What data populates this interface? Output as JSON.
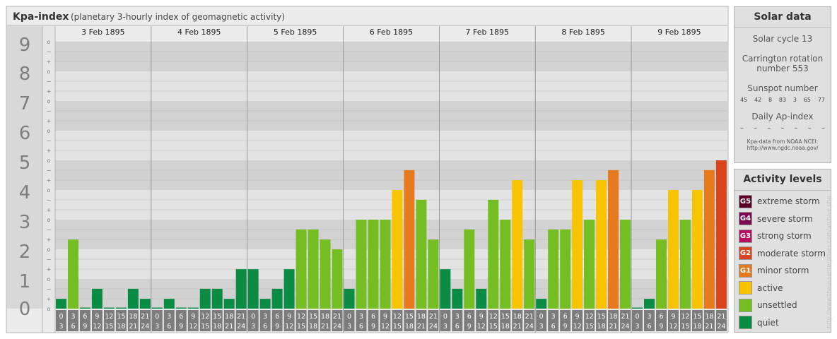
{
  "header": {
    "title": "Kpa-index",
    "subtitle": "(planetary 3-hourly index of geomagnetic activity)"
  },
  "chart_data": {
    "type": "bar",
    "title": "Kpa-index",
    "subtitle": "(planetary 3-hourly index of geomagnetic activity)",
    "ylim": [
      0,
      9
    ],
    "y_ticks": [
      "0",
      "1",
      "2",
      "3",
      "4",
      "5",
      "6",
      "7",
      "8",
      "9"
    ],
    "sub_ticks": [
      "+",
      "o",
      "−"
    ],
    "days": [
      "3 Feb 1895",
      "4 Feb 1895",
      "5 Feb 1895",
      "6 Feb 1895",
      "7 Feb 1895",
      "8 Feb 1895",
      "9 Feb 1895"
    ],
    "interval_start": [
      "0",
      "3",
      "6",
      "9",
      "12",
      "15",
      "18",
      "21"
    ],
    "interval_end": [
      "3",
      "6",
      "9",
      "12",
      "15",
      "18",
      "21",
      "24"
    ],
    "values": [
      [
        0.33,
        2.33,
        0,
        0.67,
        0,
        0,
        0.67,
        0.33
      ],
      [
        0,
        0.33,
        0,
        0,
        0.67,
        0.67,
        0.33,
        1.33
      ],
      [
        1.33,
        0.33,
        0.67,
        1.33,
        2.67,
        2.67,
        2.33,
        2
      ],
      [
        0.67,
        3,
        3,
        3,
        4,
        4.67,
        3.67,
        2.33
      ],
      [
        1.33,
        0.67,
        2.67,
        0.67,
        3.67,
        3,
        4.33,
        2.33
      ],
      [
        0.33,
        2.67,
        2.67,
        4.33,
        3,
        4.33,
        4.67,
        3
      ],
      [
        0,
        0.33,
        2.33,
        4,
        3,
        4,
        4.67,
        5
      ]
    ],
    "grid": true,
    "legend": "right"
  },
  "solar": {
    "title": "Solar data",
    "cycle": "Solar cycle 13",
    "carrington_line1": "Carrington rotation",
    "carrington_line2": "number 553",
    "sunspot_label": "Sunspot number",
    "sunspots": [
      "45",
      "42",
      "8",
      "83",
      "3",
      "65",
      "77"
    ],
    "ap_label": "Daily Ap-index",
    "ap": [
      "–",
      "–",
      "–",
      "–",
      "–",
      "–",
      "–"
    ],
    "note_line1": "Kpa-data from NOAA NCEI:",
    "note_line2": "http://www.ngdc.noaa.gov/"
  },
  "activity": {
    "title": "Activity levels",
    "levels": [
      {
        "code": "G5",
        "label": "extreme storm",
        "color": "#5a0024"
      },
      {
        "code": "G4",
        "label": "severe storm",
        "color": "#7b0a50"
      },
      {
        "code": "G3",
        "label": "strong storm",
        "color": "#b4105e"
      },
      {
        "code": "G2",
        "label": "moderate storm",
        "color": "#d8441c"
      },
      {
        "code": "G1",
        "label": "minor storm",
        "color": "#e67a1e"
      },
      {
        "code": "",
        "label": "active",
        "color": "#f8c300"
      },
      {
        "code": "",
        "label": "unsettled",
        "color": "#74bd23"
      },
      {
        "code": "",
        "label": "quiet",
        "color": "#0a8c44"
      }
    ]
  },
  "credit": "http://www.theusaenterprises.com/archive.php"
}
